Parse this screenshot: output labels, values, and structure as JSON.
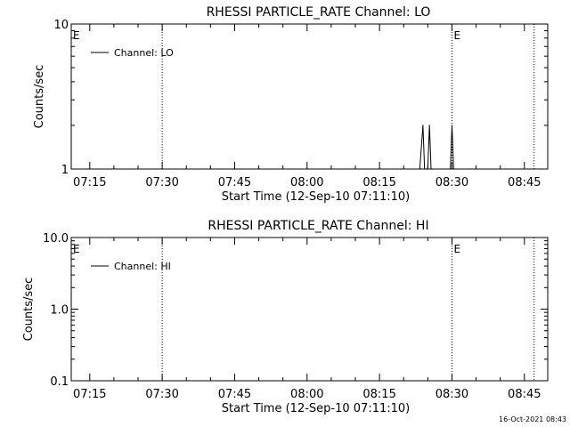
{
  "footer": "16-Oct-2021 08:43",
  "chart_data": [
    {
      "type": "line",
      "title": "RHESSI PARTICLE_RATE Channel: LO",
      "xlabel": "Start Time (12-Sep-10 07:11:10)",
      "ylabel": "Counts/sec",
      "yscale": "log",
      "ylim": [
        1,
        10
      ],
      "yticks": [
        1,
        10
      ],
      "ytick_labels": [
        "1",
        "10"
      ],
      "xlim": [
        "07:11:10",
        "08:49:50"
      ],
      "xticks": [
        "07:15",
        "07:30",
        "07:45",
        "08:00",
        "08:15",
        "08:30",
        "08:45"
      ],
      "legend": {
        "label": "Channel: LO",
        "position": "top-left"
      },
      "markers": [
        {
          "time": "07:30",
          "label": ""
        },
        {
          "time": "08:30",
          "label": "E"
        },
        {
          "time": "08:47",
          "label": ""
        }
      ],
      "left_marker_label": "E",
      "series": [
        {
          "values_time": [
            "08:23:20",
            "08:24:00",
            "08:24:20",
            "08:24:40",
            "08:25:00",
            "08:25:20",
            "08:25:40",
            "08:26:00",
            "08:29:40",
            "08:30:00",
            "08:30:20"
          ],
          "values": [
            1,
            2,
            1,
            1,
            1,
            2,
            1,
            1,
            1,
            2,
            1
          ]
        }
      ]
    },
    {
      "type": "line",
      "title": "RHESSI PARTICLE_RATE Channel: HI",
      "xlabel": "Start Time (12-Sep-10 07:11:10)",
      "ylabel": "Counts/sec",
      "yscale": "log",
      "ylim": [
        0.1,
        10
      ],
      "yticks": [
        0.1,
        1,
        10
      ],
      "ytick_labels": [
        "0.1",
        "1.0",
        "10.0"
      ],
      "xlim": [
        "07:11:10",
        "08:49:50"
      ],
      "xticks": [
        "07:15",
        "07:30",
        "07:45",
        "08:00",
        "08:15",
        "08:30",
        "08:45"
      ],
      "legend": {
        "label": "Channel: HI",
        "position": "top-left"
      },
      "markers": [
        {
          "time": "07:30",
          "label": ""
        },
        {
          "time": "08:30",
          "label": "E"
        },
        {
          "time": "08:47",
          "label": ""
        }
      ],
      "left_marker_label": "E",
      "series": [
        {
          "values_time": [],
          "values": []
        }
      ]
    }
  ]
}
